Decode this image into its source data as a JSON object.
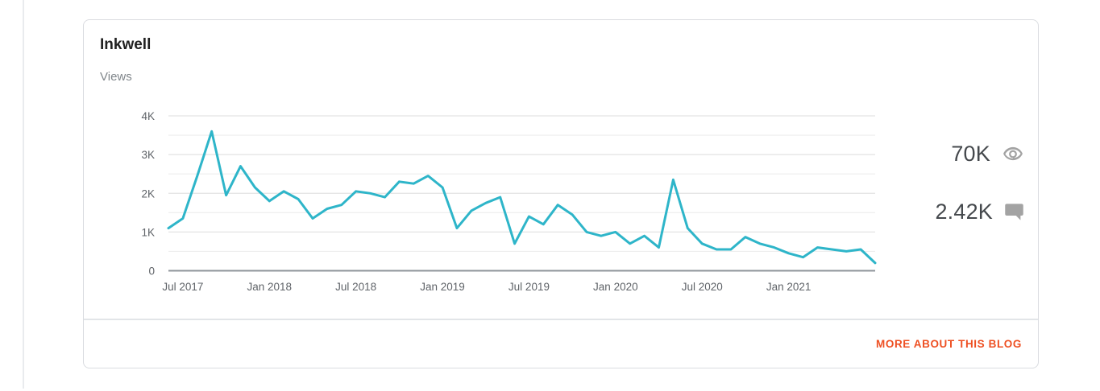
{
  "card": {
    "title": "Inkwell",
    "metric_label": "Views",
    "footer_link_label": "MORE ABOUT THIS BLOG"
  },
  "stats": {
    "views": {
      "value": "70K",
      "icon": "eye-icon"
    },
    "comments": {
      "value": "2.42K",
      "icon": "comment-icon"
    }
  },
  "colors": {
    "line": "#2eb5c9",
    "grid_minor": "#ededed",
    "grid_major": "#e3e3e3",
    "axis_baseline": "#8f959b",
    "axis_text": "#5f6368",
    "link": "#ee5023",
    "stat_icon": "#a3a3a3",
    "card_border": "#dadce0"
  },
  "chart_data": {
    "type": "line",
    "title": "Views",
    "x": [
      "Jun 2017",
      "Jul 2017",
      "Aug 2017",
      "Sep 2017",
      "Oct 2017",
      "Nov 2017",
      "Dec 2017",
      "Jan 2018",
      "Feb 2018",
      "Mar 2018",
      "Apr 2018",
      "May 2018",
      "Jun 2018",
      "Jul 2018",
      "Aug 2018",
      "Sep 2018",
      "Oct 2018",
      "Nov 2018",
      "Dec 2018",
      "Jan 2019",
      "Feb 2019",
      "Mar 2019",
      "Apr 2019",
      "May 2019",
      "Jun 2019",
      "Jul 2019",
      "Aug 2019",
      "Sep 2019",
      "Oct 2019",
      "Nov 2019",
      "Dec 2019",
      "Jan 2020",
      "Feb 2020",
      "Mar 2020",
      "Apr 2020",
      "May 2020",
      "Jun 2020",
      "Jul 2020",
      "Aug 2020",
      "Sep 2020",
      "Oct 2020",
      "Nov 2020",
      "Dec 2020",
      "Jan 2021",
      "Feb 2021",
      "Mar 2021",
      "Apr 2021",
      "May 2021",
      "Jun 2021",
      "Jul 2021"
    ],
    "values": [
      1100,
      1350,
      2450,
      3600,
      1950,
      2700,
      2150,
      1800,
      2050,
      1850,
      1350,
      1600,
      1700,
      2050,
      2000,
      1900,
      2300,
      2250,
      2450,
      2150,
      1100,
      1550,
      1750,
      1900,
      700,
      1400,
      1200,
      1700,
      1450,
      1000,
      900,
      1000,
      700,
      900,
      600,
      2350,
      1100,
      700,
      550,
      550,
      870,
      700,
      600,
      450,
      350,
      600,
      550,
      500,
      550,
      200
    ],
    "x_tick_labels": [
      "Jul 2017",
      "Jan 2018",
      "Jul 2018",
      "Jan 2019",
      "Jul 2019",
      "Jan 2020",
      "Jul 2020",
      "Jan 2021"
    ],
    "x_tick_indices": [
      1,
      7,
      13,
      19,
      25,
      31,
      37,
      43
    ],
    "y_tick_labels": [
      "0",
      "1K",
      "2K",
      "3K",
      "4K"
    ],
    "y_tick_values": [
      0,
      1000,
      2000,
      3000,
      4000
    ],
    "ylim": [
      0,
      4000
    ],
    "y_grid_step": 500,
    "grid": true,
    "legend": "none",
    "xlabel": "",
    "ylabel": ""
  }
}
